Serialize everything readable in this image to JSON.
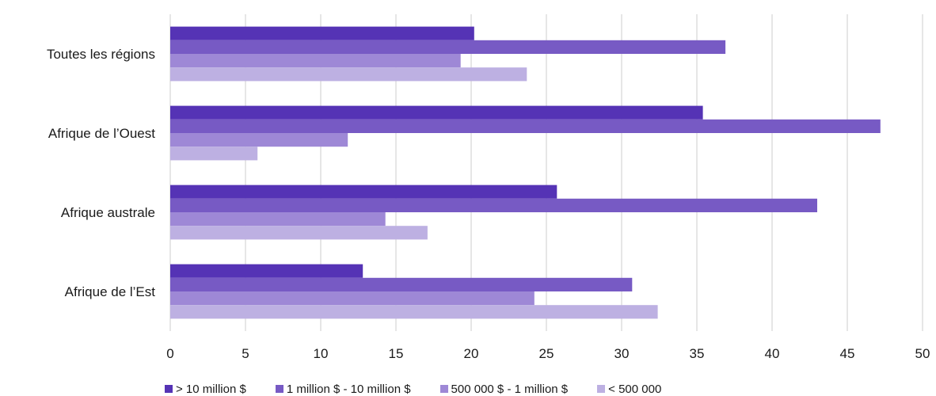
{
  "chart_data": {
    "type": "bar",
    "orientation": "horizontal",
    "categories": [
      "Toutes les régions",
      "Afrique de l’Ouest",
      "Afrique australe",
      "Afrique de l’Est"
    ],
    "series": [
      {
        "name": "> 10 million $",
        "color": "#5533b5",
        "values": [
          20.2,
          35.4,
          25.7,
          12.8
        ]
      },
      {
        "name": "1 million $ - 10 million $",
        "color": "#775ac4",
        "values": [
          36.9,
          47.2,
          43.0,
          30.7
        ]
      },
      {
        "name": "500 000 $ - 1 million $",
        "color": "#9e88d6",
        "values": [
          19.3,
          11.8,
          14.3,
          24.2
        ]
      },
      {
        "name": "< 500 000",
        "color": "#bdb0e2",
        "values": [
          23.7,
          5.8,
          17.1,
          32.4
        ]
      }
    ],
    "xlim": [
      0,
      50
    ],
    "xticks": [
      "0",
      "5",
      "10",
      "15",
      "20",
      "25",
      "30",
      "35",
      "40",
      "45",
      "50"
    ],
    "grid": "vertical",
    "legend_position": "bottom"
  }
}
